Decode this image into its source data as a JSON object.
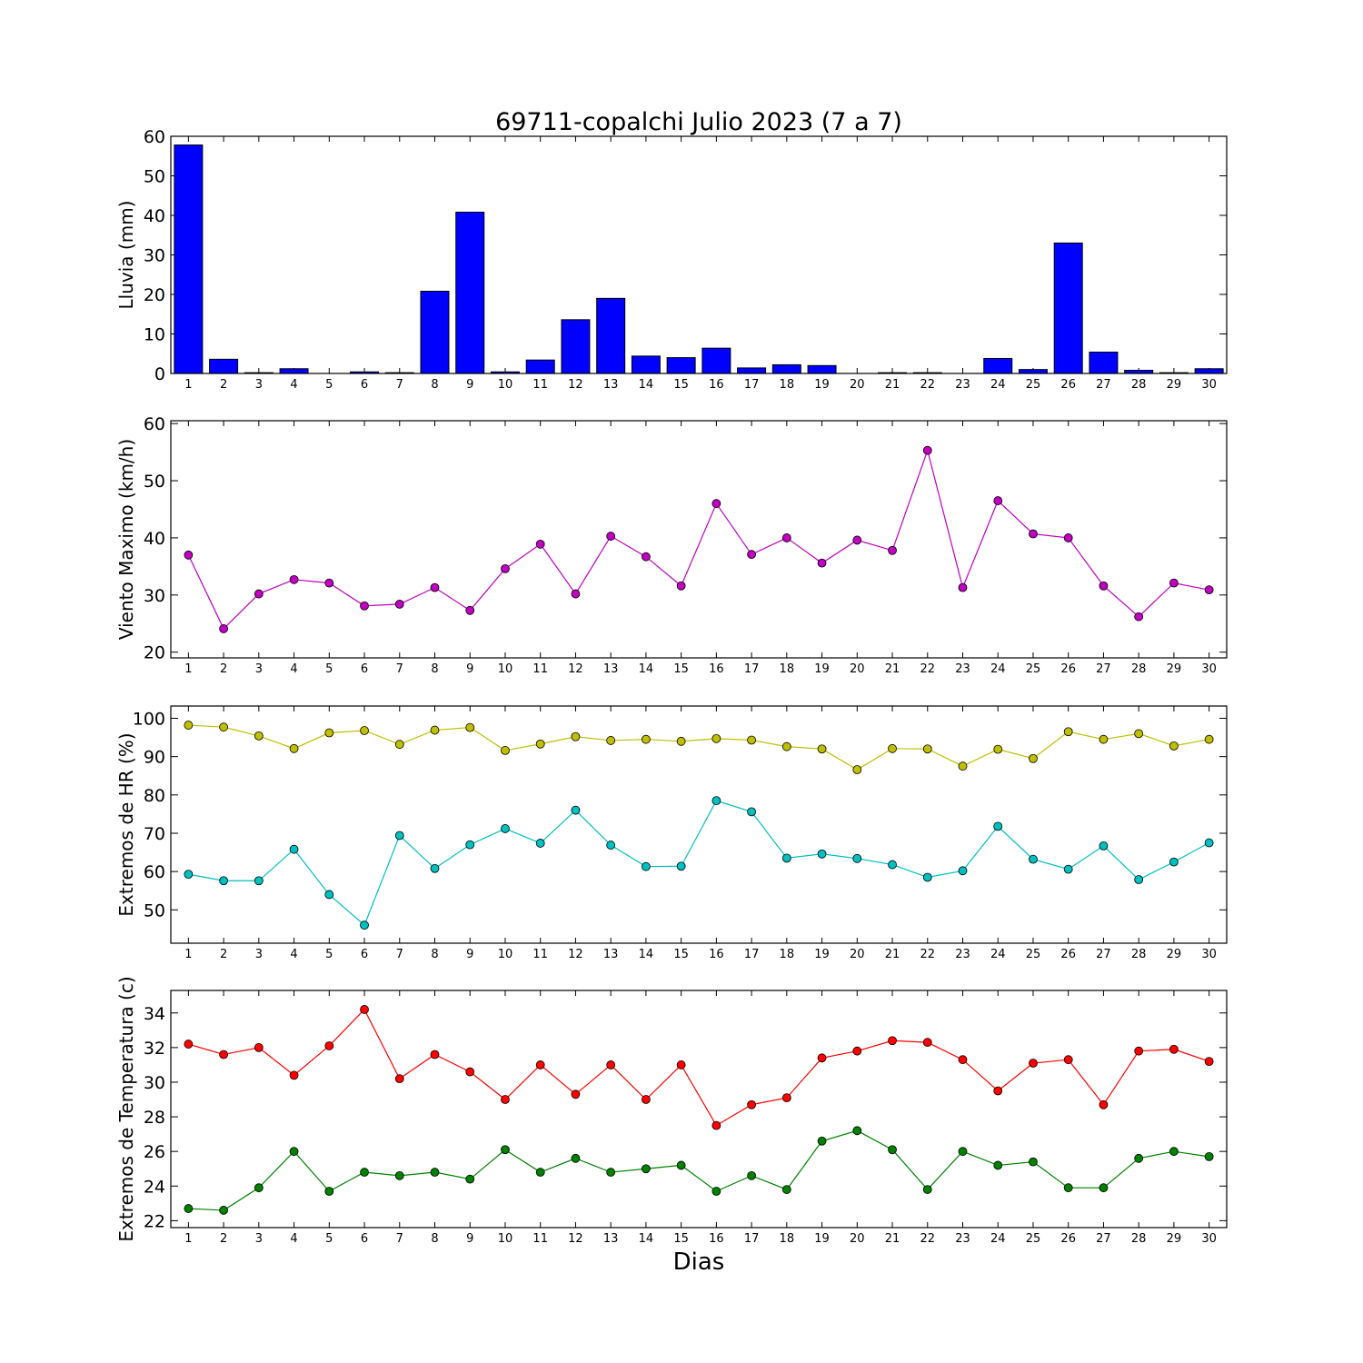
{
  "chart_data": [
    {
      "type": "bar",
      "title": "69711-copalchi Julio 2023  (7 a 7)",
      "ylabel": "Lluvia (mm)",
      "xlabel": "",
      "categories": [
        "1",
        "2",
        "3",
        "4",
        "5",
        "6",
        "7",
        "8",
        "9",
        "10",
        "11",
        "12",
        "13",
        "14",
        "15",
        "16",
        "17",
        "18",
        "19",
        "20",
        "21",
        "22",
        "23",
        "24",
        "25",
        "26",
        "27",
        "28",
        "29",
        "30"
      ],
      "values": [
        57.8,
        3.6,
        0.2,
        1.2,
        0,
        0.4,
        0.2,
        20.8,
        40.8,
        0.4,
        3.4,
        13.6,
        19,
        4.4,
        4,
        6.4,
        1.4,
        2.2,
        2,
        0,
        0.2,
        0.2,
        0,
        3.8,
        1,
        33,
        5.4,
        0.8,
        0.2,
        1.2
      ],
      "ylim": [
        0,
        60
      ],
      "yticks": [
        0,
        10,
        20,
        30,
        40,
        50,
        60
      ],
      "colors": {
        "bar": "#0000ff"
      }
    },
    {
      "type": "line",
      "ylabel": "Viento Maximo (km/h)",
      "x": [
        1,
        2,
        3,
        4,
        5,
        6,
        7,
        8,
        9,
        10,
        11,
        12,
        13,
        14,
        15,
        16,
        17,
        18,
        19,
        20,
        21,
        22,
        23,
        24,
        25,
        26,
        27,
        28,
        29,
        30
      ],
      "series": [
        {
          "values": [
            37,
            24.1,
            30.2,
            32.7,
            32.1,
            28.1,
            28.4,
            31.3,
            27.3,
            34.6,
            38.9,
            30.2,
            40.3,
            36.7,
            31.6,
            46,
            37.1,
            40,
            35.6,
            39.6,
            37.8,
            55.3,
            31.3,
            46.5,
            40.7,
            40,
            31.6,
            26.2,
            32.1,
            30.9
          ],
          "color": "#bf00bf"
        }
      ],
      "ylim": [
        19,
        60.5
      ],
      "yticks": [
        20,
        30,
        40,
        50,
        60
      ]
    },
    {
      "type": "line",
      "ylabel": "Extremos de HR (%)",
      "x": [
        1,
        2,
        3,
        4,
        5,
        6,
        7,
        8,
        9,
        10,
        11,
        12,
        13,
        14,
        15,
        16,
        17,
        18,
        19,
        20,
        21,
        22,
        23,
        24,
        25,
        26,
        27,
        28,
        29,
        30
      ],
      "series": [
        {
          "values": [
            98.2,
            97.7,
            95.4,
            92.1,
            96.2,
            96.8,
            93.2,
            96.9,
            97.6,
            91.6,
            93.3,
            95.2,
            94.2,
            94.5,
            94,
            94.7,
            94.3,
            92.6,
            92,
            86.6,
            92.1,
            92,
            87.5,
            91.9,
            89.5,
            96.5,
            94.5,
            96,
            92.8,
            94.5
          ],
          "color": "#bfbf00"
        },
        {
          "values": [
            59.3,
            57.6,
            57.6,
            65.8,
            54,
            46,
            69.4,
            60.8,
            67,
            71.2,
            67.4,
            76,
            66.9,
            61.3,
            61.4,
            78.5,
            75.6,
            63.5,
            64.6,
            63.4,
            61.8,
            58.5,
            60.2,
            71.8,
            63.2,
            60.6,
            66.7,
            57.9,
            62.5,
            67.5
          ],
          "color": "#00bfbf"
        }
      ],
      "ylim": [
        41.3,
        103.2
      ],
      "yticks": [
        50,
        60,
        70,
        80,
        90,
        100
      ]
    },
    {
      "type": "line",
      "ylabel": "Extremos de Temperatura (c)",
      "xlabel": "Dias",
      "x": [
        1,
        2,
        3,
        4,
        5,
        6,
        7,
        8,
        9,
        10,
        11,
        12,
        13,
        14,
        15,
        16,
        17,
        18,
        19,
        20,
        21,
        22,
        23,
        24,
        25,
        26,
        27,
        28,
        29,
        30
      ],
      "series": [
        {
          "values": [
            32.2,
            31.6,
            32,
            30.4,
            32.1,
            34.2,
            30.2,
            31.6,
            30.6,
            29,
            31,
            29.3,
            31,
            29,
            31,
            27.5,
            28.7,
            29.1,
            31.4,
            31.8,
            32.4,
            32.3,
            31.3,
            29.5,
            31.1,
            31.3,
            28.7,
            31.8,
            31.9,
            31.2
          ],
          "color": "#ff0000"
        },
        {
          "values": [
            22.7,
            22.6,
            23.9,
            26,
            23.7,
            24.8,
            24.6,
            24.8,
            24.4,
            26.1,
            24.8,
            25.6,
            24.8,
            25,
            25.2,
            23.7,
            24.6,
            23.8,
            26.6,
            27.2,
            26.1,
            23.8,
            26,
            25.2,
            25.4,
            23.9,
            23.9,
            25.6,
            26,
            25.7
          ],
          "color": "#008000"
        }
      ],
      "ylim": [
        21.6,
        35.3
      ],
      "yticks": [
        22,
        24,
        26,
        28,
        30,
        32,
        34
      ]
    }
  ]
}
